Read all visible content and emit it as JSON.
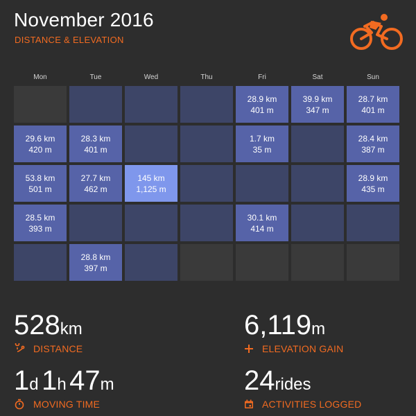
{
  "header": {
    "title": "November 2016",
    "subtitle": "DISTANCE & ELEVATION",
    "logo_icon": "cyclist-icon",
    "accent_color": "#f26b21"
  },
  "calendar": {
    "weekdays": [
      "Mon",
      "Tue",
      "Wed",
      "Thu",
      "Fri",
      "Sat",
      "Sun"
    ],
    "weeks": [
      [
        null,
        {
          "distance": "",
          "elevation": ""
        },
        {
          "distance": "",
          "elevation": ""
        },
        {
          "distance": "",
          "elevation": ""
        },
        {
          "distance": "28.9 km",
          "elevation": "401 m"
        },
        {
          "distance": "39.9 km",
          "elevation": "347 m"
        },
        {
          "distance": "28.7 km",
          "elevation": "401 m"
        }
      ],
      [
        {
          "distance": "29.6 km",
          "elevation": "420 m"
        },
        {
          "distance": "28.3 km",
          "elevation": "401 m"
        },
        {
          "distance": "",
          "elevation": ""
        },
        {
          "distance": "",
          "elevation": ""
        },
        {
          "distance": "1.7 km",
          "elevation": "35 m"
        },
        {
          "distance": "",
          "elevation": ""
        },
        {
          "distance": "28.4 km",
          "elevation": "387 m"
        }
      ],
      [
        {
          "distance": "53.8 km",
          "elevation": "501 m"
        },
        {
          "distance": "27.7 km",
          "elevation": "462 m"
        },
        {
          "distance": "145 km",
          "elevation": "1,125 m",
          "highlight": true
        },
        {
          "distance": "",
          "elevation": ""
        },
        {
          "distance": "",
          "elevation": ""
        },
        {
          "distance": "",
          "elevation": ""
        },
        {
          "distance": "28.9 km",
          "elevation": "435 m"
        }
      ],
      [
        {
          "distance": "28.5 km",
          "elevation": "393 m"
        },
        {
          "distance": "",
          "elevation": ""
        },
        {
          "distance": "",
          "elevation": ""
        },
        {
          "distance": "",
          "elevation": ""
        },
        {
          "distance": "30.1 km",
          "elevation": "414 m"
        },
        {
          "distance": "",
          "elevation": ""
        },
        {
          "distance": "",
          "elevation": ""
        }
      ],
      [
        {
          "distance": "",
          "elevation": ""
        },
        {
          "distance": "28.8 km",
          "elevation": "397 m"
        },
        {
          "distance": "",
          "elevation": ""
        },
        null,
        null,
        null,
        null
      ]
    ]
  },
  "stats": {
    "distance": {
      "value": "528",
      "unit": "km",
      "label": "DISTANCE",
      "icon": "route-icon"
    },
    "elevation": {
      "value": "6,119",
      "unit": "m",
      "label": "ELEVATION GAIN",
      "icon": "plus-icon"
    },
    "moving_time": {
      "days": "1",
      "days_unit": "d",
      "hours": "1",
      "hours_unit": "h",
      "minutes": "47",
      "minutes_unit": "m",
      "label": "MOVING TIME",
      "icon": "stopwatch-icon"
    },
    "activities": {
      "value": "24",
      "unit": "rides",
      "label": "ACTIVITIES LOGGED",
      "icon": "calendar-icon"
    }
  }
}
